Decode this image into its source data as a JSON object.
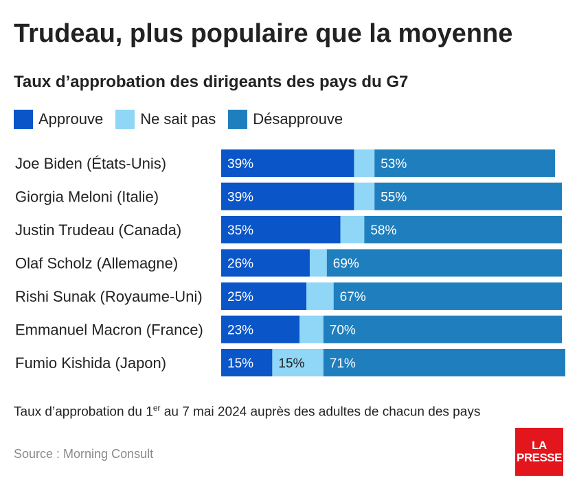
{
  "title": "Trudeau, plus populaire que la moyenne",
  "subtitle": "Taux d’approbation des dirigeants des pays du G7",
  "legend": [
    "Approuve",
    "Ne sait pas",
    "Désapprouve"
  ],
  "colors": {
    "approve": "#0a55c8",
    "unsure": "#8fd6f7",
    "disapprove": "#1f7fbe",
    "logo": "#e3151d"
  },
  "footnote": {
    "before": "Taux d’approbation du 1",
    "sup": "er",
    "after": " au 7 mai 2024 auprès des adultes de chacun des pays"
  },
  "source": "Source : Morning Consult",
  "logo": {
    "line1": "LA",
    "line2": "PRESSE"
  },
  "chart_data": {
    "type": "bar",
    "orientation": "horizontal",
    "stacked": true,
    "categories": [
      "Joe Biden (États-Unis)",
      "Giorgia Meloni (Italie)",
      "Justin Trudeau (Canada)",
      "Olaf Scholz (Allemagne)",
      "Rishi Sunak (Royaume-Uni)",
      "Emmanuel Macron (France)",
      "Fumio Kishida (Japon)"
    ],
    "series": [
      {
        "name": "Approuve",
        "values": [
          39,
          39,
          35,
          26,
          25,
          23,
          15
        ],
        "labels": [
          "39%",
          "39%",
          "35%",
          "26%",
          "25%",
          "23%",
          "15%"
        ]
      },
      {
        "name": "Ne sait pas",
        "values": [
          6,
          6,
          7,
          5,
          8,
          7,
          15
        ],
        "labels": [
          "",
          "",
          "",
          "",
          "",
          "",
          "15%"
        ]
      },
      {
        "name": "Désapprouve",
        "values": [
          53,
          55,
          58,
          69,
          67,
          70,
          71
        ],
        "labels": [
          "53%",
          "55%",
          "58%",
          "69%",
          "67%",
          "70%",
          "71%"
        ]
      }
    ],
    "xlim": [
      0,
      100
    ],
    "legend_position": "top-left",
    "grid": false
  }
}
